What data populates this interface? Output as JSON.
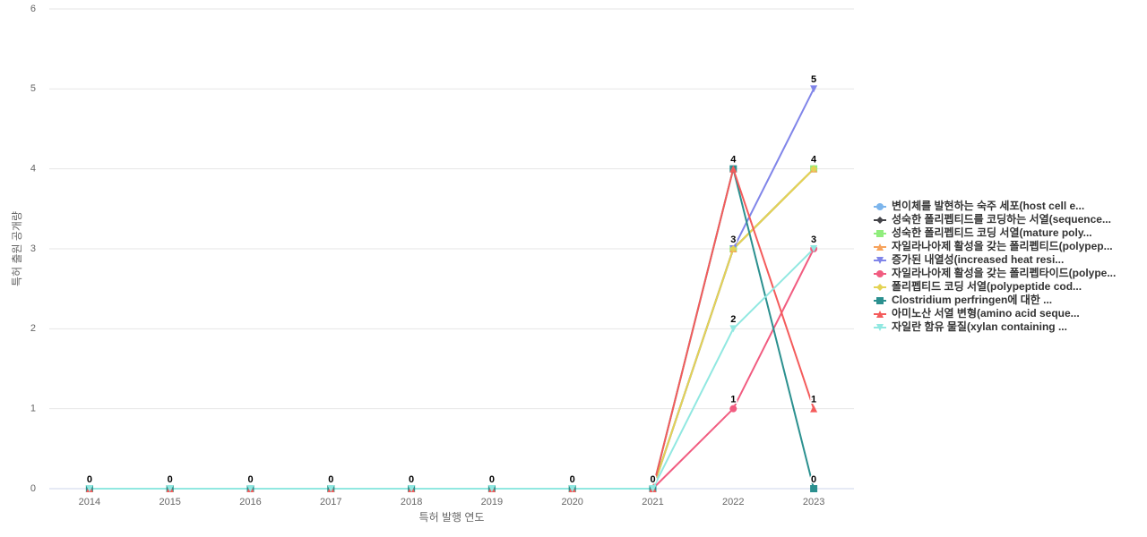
{
  "chart_data": {
    "type": "line",
    "x_label": "특허 발행 연도",
    "y_label": "특허 출원 공개량",
    "categories": [
      "2014",
      "2015",
      "2016",
      "2017",
      "2018",
      "2019",
      "2020",
      "2021",
      "2022",
      "2023"
    ],
    "ylim": [
      0,
      6
    ],
    "yticks": [
      0,
      1,
      2,
      3,
      4,
      5,
      6
    ],
    "grid": true,
    "series": [
      {
        "name": "변이체를 발현하는 숙주 세포(host cell e...",
        "color": "#7cb5ec",
        "marker": "circle",
        "values": [
          0,
          0,
          0,
          0,
          0,
          0,
          0,
          0,
          3,
          4
        ]
      },
      {
        "name": "성숙한 폴리펩티드를 코딩하는 서열(sequence...",
        "color": "#434348",
        "marker": "diamond",
        "values": [
          0,
          0,
          0,
          0,
          0,
          0,
          0,
          0,
          3,
          4
        ]
      },
      {
        "name": "성숙한 폴리펩티드 코딩 서열(mature poly...",
        "color": "#90ed7d",
        "marker": "square",
        "values": [
          0,
          0,
          0,
          0,
          0,
          0,
          0,
          0,
          3,
          4
        ]
      },
      {
        "name": "자일라나아제 활성을 갖는 폴리펩티드(polypep...",
        "color": "#f7a35c",
        "marker": "triangle",
        "values": [
          0,
          0,
          0,
          0,
          0,
          0,
          0,
          0,
          3,
          4
        ]
      },
      {
        "name": "증가된 내열성(increased heat resi...",
        "color": "#8085e9",
        "marker": "triangle-down",
        "values": [
          0,
          0,
          0,
          0,
          0,
          0,
          0,
          0,
          3,
          5
        ]
      },
      {
        "name": "자일라나아제 활성을 갖는 폴리펩타이드(polype...",
        "color": "#f15c80",
        "marker": "circle",
        "values": [
          0,
          0,
          0,
          0,
          0,
          0,
          0,
          0,
          1,
          3
        ]
      },
      {
        "name": "폴리펩티드 코딩 서열(polypeptide cod...",
        "color": "#e4d354",
        "marker": "diamond",
        "values": [
          0,
          0,
          0,
          0,
          0,
          0,
          0,
          0,
          3,
          4
        ]
      },
      {
        "name": "Clostridium perfringen에 대한 ...",
        "color": "#2b908f",
        "marker": "square",
        "values": [
          0,
          0,
          0,
          0,
          0,
          0,
          0,
          0,
          4,
          0
        ]
      },
      {
        "name": "아미노산 서열 변형(amino acid seque...",
        "color": "#f45b5b",
        "marker": "triangle",
        "values": [
          0,
          0,
          0,
          0,
          0,
          0,
          0,
          0,
          4,
          1
        ]
      },
      {
        "name": "자일란 함유 물질(xylan containing ...",
        "color": "#91e8e1",
        "marker": "triangle-down",
        "values": [
          0,
          0,
          0,
          0,
          0,
          0,
          0,
          0,
          2,
          3
        ]
      }
    ]
  }
}
